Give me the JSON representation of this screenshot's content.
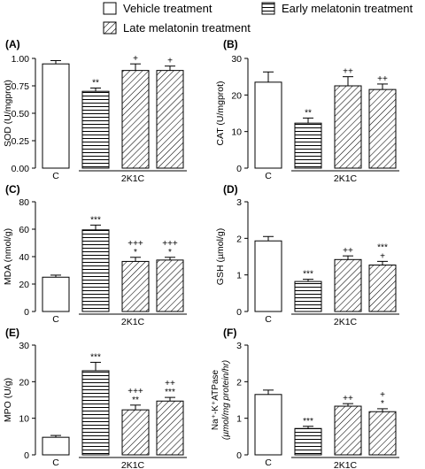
{
  "legend": [
    {
      "label": "Vehicle treatment",
      "pattern": "plain"
    },
    {
      "label": "Early melatonin treatment",
      "pattern": "hlines"
    },
    {
      "label": "Late melatonin treatment",
      "pattern": "diag"
    }
  ],
  "chart_data": [
    {
      "type": "bar",
      "panel": "(A)",
      "ylabel": "SOD (U/mgprot)",
      "ylim": [
        0,
        1.0
      ],
      "ticks": [
        0.0,
        0.25,
        0.5,
        0.75,
        1.0
      ],
      "tick_labels": [
        "0.00",
        "0.25",
        "0.50",
        "0.75",
        "1.00"
      ],
      "categories": [
        "C",
        "2K1C",
        "2K1C",
        "2K1C"
      ],
      "group_labels": {
        "control": "C",
        "model": "2K1C"
      },
      "values": [
        0.95,
        0.7,
        0.89,
        0.89
      ],
      "errors": [
        0.03,
        0.03,
        0.06,
        0.04
      ],
      "annotations": [
        [],
        [
          "**"
        ],
        [
          "+"
        ],
        [
          "+"
        ]
      ]
    },
    {
      "type": "bar",
      "panel": "(B)",
      "ylabel": "CAT (U/mgprot)",
      "ylim": [
        0,
        30
      ],
      "ticks": [
        0,
        10,
        20,
        30
      ],
      "tick_labels": [
        "0",
        "10",
        "20",
        "30"
      ],
      "categories": [
        "C",
        "2K1C",
        "2K1C",
        "2K1C"
      ],
      "group_labels": {
        "control": "C",
        "model": "2K1C"
      },
      "values": [
        23.5,
        12.3,
        22.5,
        21.5
      ],
      "errors": [
        2.8,
        1.4,
        2.5,
        1.5
      ],
      "annotations": [
        [],
        [
          "**"
        ],
        [
          "++"
        ],
        [
          "++"
        ]
      ]
    },
    {
      "type": "bar",
      "panel": "(C)",
      "ylabel": "MDA (nmol/g)",
      "ylim": [
        0,
        80
      ],
      "ticks": [
        0,
        20,
        40,
        60,
        80
      ],
      "tick_labels": [
        "0",
        "20",
        "40",
        "60",
        "80"
      ],
      "categories": [
        "C",
        "2K1C",
        "2K1C",
        "2K1C"
      ],
      "group_labels": {
        "control": "C",
        "model": "2K1C"
      },
      "values": [
        25,
        59.5,
        36.5,
        37.5
      ],
      "errors": [
        1.5,
        3.5,
        3.0,
        2.0
      ],
      "annotations": [
        [],
        [
          "***"
        ],
        [
          "+++",
          "*"
        ],
        [
          "+++",
          "*"
        ]
      ]
    },
    {
      "type": "bar",
      "panel": "(D)",
      "ylabel": "GSH (µmol/g)",
      "ylim": [
        0,
        3
      ],
      "ticks": [
        0,
        1,
        2,
        3
      ],
      "tick_labels": [
        "0",
        "1",
        "2",
        "3"
      ],
      "categories": [
        "C",
        "2K1C",
        "2K1C",
        "2K1C"
      ],
      "group_labels": {
        "control": "C",
        "model": "2K1C"
      },
      "values": [
        1.93,
        0.82,
        1.42,
        1.27
      ],
      "errors": [
        0.12,
        0.06,
        0.1,
        0.1
      ],
      "annotations": [
        [],
        [
          "***"
        ],
        [
          "++"
        ],
        [
          "***",
          "+"
        ]
      ]
    },
    {
      "type": "bar",
      "panel": "(E)",
      "ylabel": "MPO (U/g)",
      "ylim": [
        0,
        30
      ],
      "ticks": [
        0,
        10,
        20,
        30
      ],
      "tick_labels": [
        "0",
        "10",
        "20",
        "30"
      ],
      "categories": [
        "C",
        "2K1C",
        "2K1C",
        "2K1C"
      ],
      "group_labels": {
        "control": "C",
        "model": "2K1C"
      },
      "values": [
        4.8,
        23.0,
        12.3,
        14.7
      ],
      "errors": [
        0.5,
        2.3,
        1.3,
        1.0
      ],
      "annotations": [
        [],
        [
          "***"
        ],
        [
          "+++",
          "**"
        ],
        [
          "++",
          "***"
        ]
      ]
    },
    {
      "type": "bar",
      "panel": "(F)",
      "ylabel_lines": [
        "Na⁺-K⁺ATPase",
        "(µmol/mg protein/hr)"
      ],
      "ylim": [
        0,
        3
      ],
      "ticks": [
        0,
        1,
        2,
        3
      ],
      "tick_labels": [
        "0",
        "1",
        "2",
        "3"
      ],
      "categories": [
        "C",
        "2K1C",
        "2K1C",
        "2K1C"
      ],
      "group_labels": {
        "control": "C",
        "model": "2K1C"
      },
      "values": [
        1.65,
        0.72,
        1.33,
        1.18
      ],
      "errors": [
        0.12,
        0.06,
        0.07,
        0.08
      ],
      "annotations": [
        [],
        [
          "***"
        ],
        [
          "++"
        ],
        [
          "+",
          "*"
        ]
      ]
    }
  ]
}
